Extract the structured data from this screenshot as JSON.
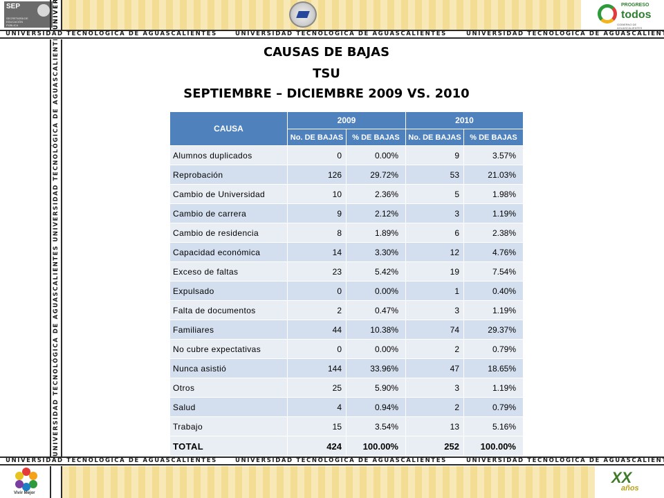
{
  "header": {
    "sep_label": "SEP",
    "sep_sub": "SECRETARÍA DE EDUCACIÓN PÚBLICA",
    "progreso_line1": "PROGRESO",
    "progreso_line2": "todos",
    "progreso_line3": "GOBIERNO DE AGUASCALIENTES"
  },
  "banner": {
    "text": "UNIVERSIDAD TECNOLÓGICA DE AGUASCALIENTES",
    "vertical_text": "UNIVERSIDAD TECNOLÓGICA DE AGUASCALIENTES   UNIVERSIDAD TECNOLÓGICA DE AGUASCALIENTES   UNIVERSIDAD TECNOLÓGICA DE AGUASCALIENTES",
    "vertical_top": "UNIVER"
  },
  "footer": {
    "vivir_label": "Vivir Mejor",
    "xx_label": "XX",
    "xx_sub": "años"
  },
  "title": {
    "line1": "CAUSAS DE BAJAS",
    "line2": "TSU",
    "line3": "SEPTIEMBRE – DICIEMBRE 2009 VS. 2010"
  },
  "table": {
    "cause_header": "CAUSA",
    "year1": "2009",
    "year2": "2010",
    "col_count": "No. DE BAJAS",
    "col_pct": "% DE BAJAS",
    "rows": [
      [
        "Alumnos duplicados",
        "0",
        "0.00%",
        "9",
        "3.57%"
      ],
      [
        "Reprobación",
        "126",
        "29.72%",
        "53",
        "21.03%"
      ],
      [
        "Cambio de Universidad",
        "10",
        "2.36%",
        "5",
        "1.98%"
      ],
      [
        "Cambio de carrera",
        "9",
        "2.12%",
        "3",
        "1.19%"
      ],
      [
        "Cambio de residencia",
        "8",
        "1.89%",
        "6",
        "2.38%"
      ],
      [
        "Capacidad económica",
        "14",
        "3.30%",
        "12",
        "4.76%"
      ],
      [
        "Exceso de faltas",
        "23",
        "5.42%",
        "19",
        "7.54%"
      ],
      [
        "Expulsado",
        "0",
        "0.00%",
        "1",
        "0.40%"
      ],
      [
        "Falta de documentos",
        "2",
        "0.47%",
        "3",
        "1.19%"
      ],
      [
        "Familiares",
        "44",
        "10.38%",
        "74",
        "29.37%"
      ],
      [
        "No cubre expectativas",
        "0",
        "0.00%",
        "2",
        "0.79%"
      ],
      [
        "Nunca asistió",
        "144",
        "33.96%",
        "47",
        "18.65%"
      ],
      [
        "Otros",
        "25",
        "5.90%",
        "3",
        "1.19%"
      ],
      [
        "Salud",
        "4",
        "0.94%",
        "2",
        "0.79%"
      ],
      [
        "Trabajo",
        "15",
        "3.54%",
        "13",
        "5.16%"
      ]
    ],
    "total": [
      "TOTAL",
      "424",
      "100.00%",
      "252",
      "100.00%"
    ]
  },
  "colors": {
    "header_blue": "#4f81bd",
    "row_light": "#e9edf4",
    "row_dark": "#d3dfee",
    "logo_green": "#2f7d32"
  }
}
